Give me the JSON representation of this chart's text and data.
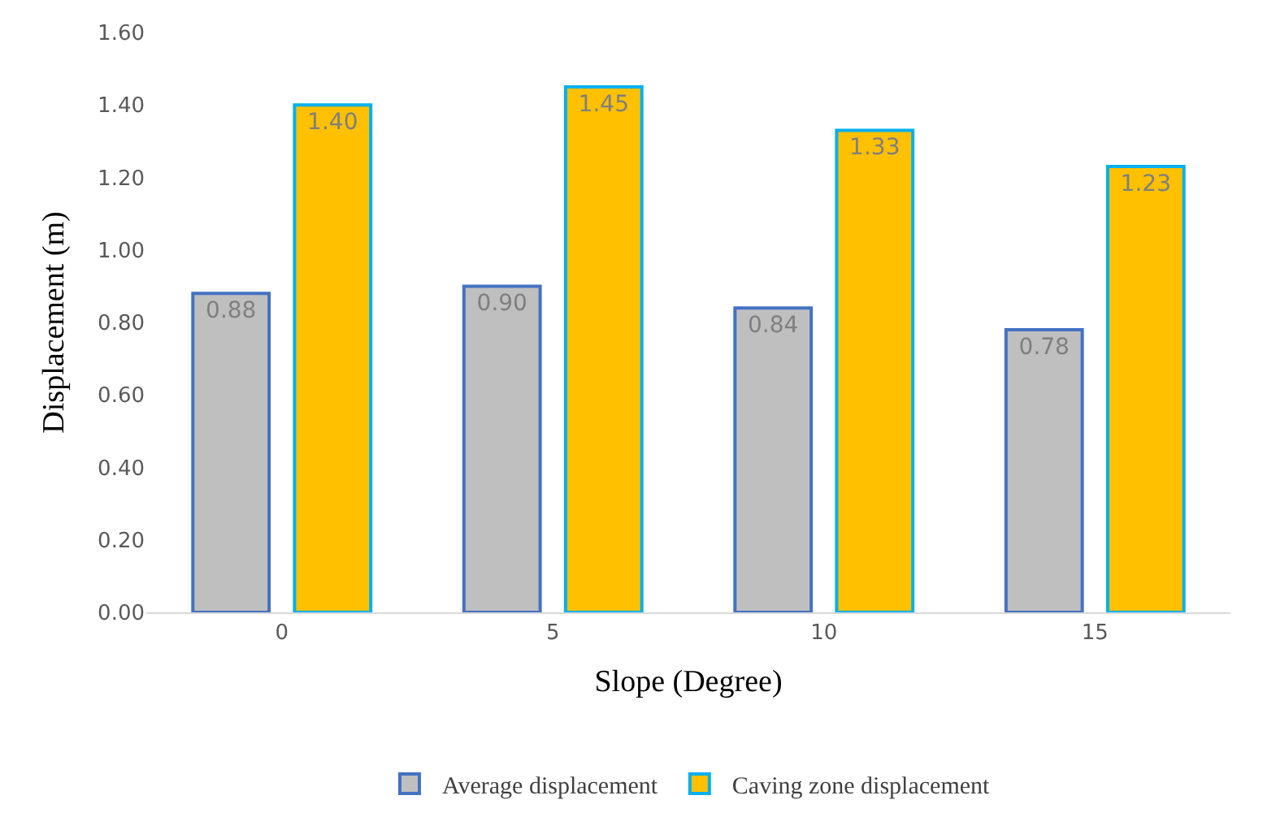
{
  "chart_data": {
    "type": "bar",
    "xlabel": "Slope (Degree)",
    "ylabel": "Displacement (m)",
    "categories": [
      "0",
      "5",
      "10",
      "15"
    ],
    "series": [
      {
        "name": "Average displacement",
        "color": "#bfbfbf",
        "values": [
          0.88,
          0.9,
          0.84,
          0.78
        ],
        "value_labels": [
          "0.88",
          "0.90",
          "0.84",
          "0.78"
        ]
      },
      {
        "name": "Caving zone displacement",
        "color": "#ffc000",
        "values": [
          1.4,
          1.45,
          1.33,
          1.23
        ],
        "value_labels": [
          "1.40",
          "1.45",
          "1.33",
          "1.23"
        ]
      }
    ],
    "ylim": [
      0,
      1.6
    ],
    "yticks": [
      {
        "value": 0,
        "label": "0.00"
      },
      {
        "value": 0.2,
        "label": "0.20"
      },
      {
        "value": 0.4,
        "label": "0.40"
      },
      {
        "value": 0.6,
        "label": "0.60"
      },
      {
        "value": 0.8,
        "label": "0.80"
      },
      {
        "value": 1.0,
        "label": "1.00"
      },
      {
        "value": 1.2,
        "label": "1.20"
      },
      {
        "value": 1.4,
        "label": "1.40"
      },
      {
        "value": 1.6,
        "label": "1.60"
      }
    ],
    "legend": "bottom"
  }
}
